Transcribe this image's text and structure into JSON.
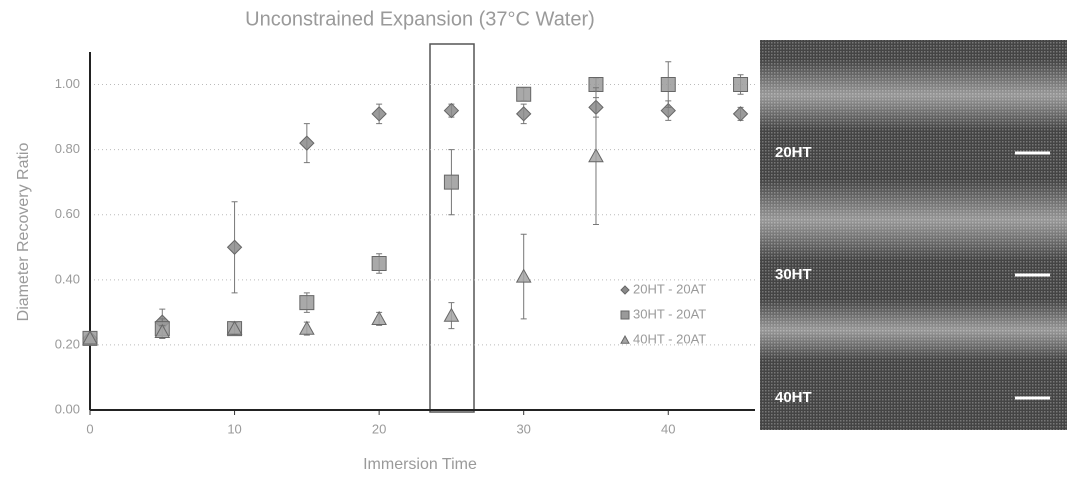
{
  "chart_data": {
    "type": "scatter",
    "title": "Unconstrained Expansion (37°C Water)",
    "x_label": "Immersion Time",
    "y_label": "Diameter Recovery Ratio",
    "x": [
      0,
      5,
      10,
      15,
      20,
      25,
      30,
      35,
      40,
      45
    ],
    "series": [
      {
        "name": "20HT - 20AT",
        "color": "#8a8a8a",
        "marker": "diamond",
        "values": [
          0.22,
          0.27,
          0.5,
          0.82,
          0.91,
          0.92,
          0.91,
          0.93,
          0.92,
          0.91
        ],
        "errors": [
          null,
          0.04,
          0.14,
          0.06,
          0.03,
          0.02,
          0.03,
          0.03,
          0.03,
          0.02
        ]
      },
      {
        "name": "30HT - 20AT",
        "color": "#9a9a9a",
        "marker": "square",
        "values": [
          0.22,
          0.25,
          0.25,
          0.33,
          0.45,
          0.7,
          0.97,
          1.0,
          1.0,
          1.0
        ],
        "errors": [
          null,
          0.03,
          0.02,
          0.03,
          0.03,
          0.1,
          0.02,
          0.02,
          0.07,
          0.03
        ]
      },
      {
        "name": "40HT - 20AT",
        "color": "#a5a5a5",
        "marker": "triangle",
        "values": [
          0.22,
          0.24,
          0.25,
          0.25,
          0.28,
          0.29,
          0.41,
          0.78,
          null,
          null
        ],
        "errors": [
          null,
          0.02,
          0.02,
          0.02,
          0.02,
          0.04,
          0.13,
          0.21,
          null,
          null
        ]
      }
    ],
    "xlim": [
      0,
      46
    ],
    "xticks": [
      0,
      10,
      20,
      30,
      40
    ],
    "ylim": [
      0,
      1.1
    ],
    "yticks": [
      {
        "value": 0,
        "label": "0.00"
      },
      {
        "value": 0.2,
        "label": "0.20"
      },
      {
        "value": 0.4,
        "label": "0.40"
      },
      {
        "value": 0.6,
        "label": "0.60"
      },
      {
        "value": 0.8,
        "label": "0.80"
      },
      {
        "value": 1,
        "label": "1.00"
      }
    ],
    "grid": true,
    "legend": "right"
  },
  "image_labels": [
    "20HT",
    "30HT",
    "40HT"
  ]
}
